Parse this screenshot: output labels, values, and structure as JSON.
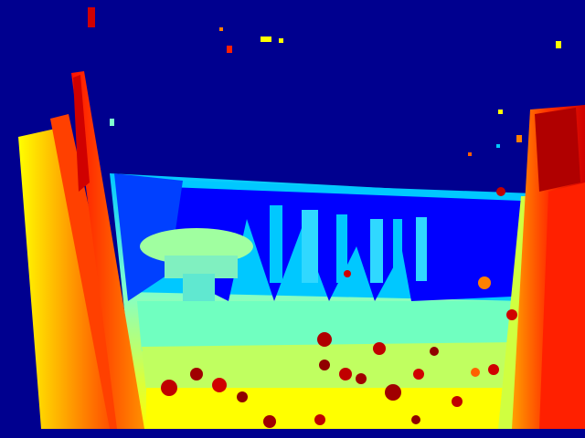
{
  "image": {
    "kind": "depth-map",
    "colormap": "jet",
    "colors": {
      "background": "#00008f",
      "far": "#0000ff",
      "mid_far": "#00c8ff",
      "mid": "#7fffcf",
      "mid_near": "#ffff00",
      "near": "#ff8000",
      "nearest": "#d00000",
      "darkest": "#7f0000"
    }
  }
}
